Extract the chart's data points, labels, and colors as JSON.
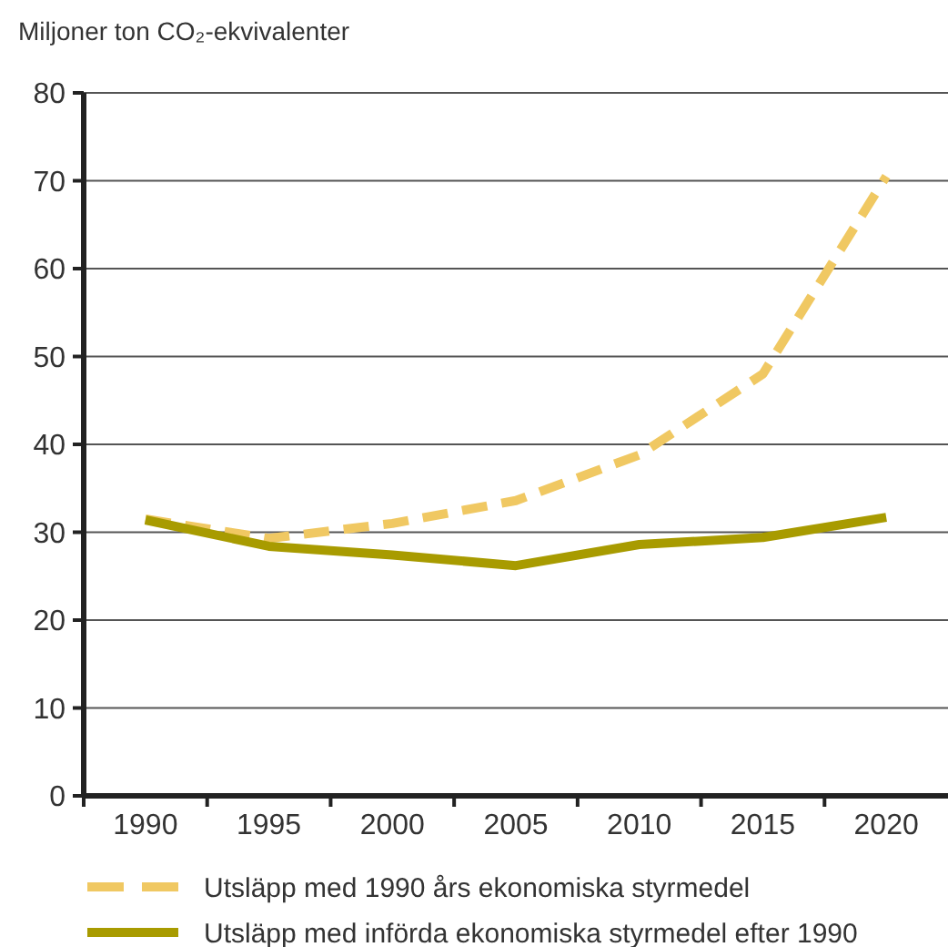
{
  "chart_data": {
    "type": "line",
    "ylabel": "Miljoner ton CO₂-ekvivalenter",
    "categories": [
      "1990",
      "1995",
      "2000",
      "2005",
      "2010",
      "2015",
      "2020"
    ],
    "series": [
      {
        "name": "Utsläpp med 1990 års ekonomiska styrmedel",
        "color": "#f0c862",
        "line_style": "dashed",
        "values": [
          31.5,
          29.3,
          31,
          33.6,
          38.8,
          48,
          70.5
        ]
      },
      {
        "name": "Utsläpp med införda ekonomiska styrmedel efter 1990",
        "color": "#a89b00",
        "line_style": "solid",
        "values": [
          31.4,
          28.4,
          27.4,
          26.2,
          28.6,
          29.4,
          31.7
        ]
      }
    ],
    "ylim": [
      0,
      80
    ],
    "yticks": [
      0,
      10,
      20,
      30,
      40,
      50,
      60,
      70,
      80
    ],
    "grid": "y",
    "legend": "bottom",
    "marker": "none"
  }
}
